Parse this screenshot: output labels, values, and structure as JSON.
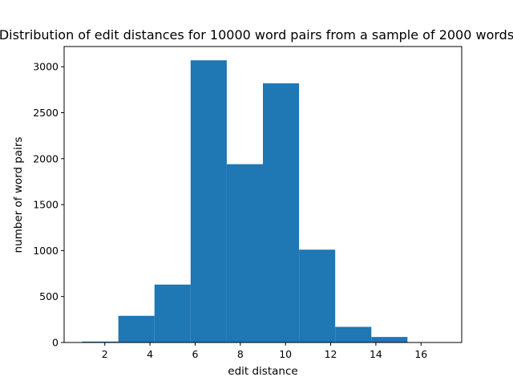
{
  "chart_data": {
    "type": "bar",
    "title": "Distribution of edit distances for 10000 word pairs from a sample of 2000 words",
    "xlabel": "edit distance",
    "ylabel": "number of word pairs",
    "bin_edges": [
      1.0,
      2.6,
      4.2,
      5.8,
      7.4,
      9.0,
      10.6,
      12.2,
      13.8,
      15.4,
      17.0
    ],
    "values": [
      10,
      290,
      630,
      3070,
      1940,
      2820,
      1010,
      170,
      60,
      0
    ],
    "xlim": [
      0.2,
      17.8
    ],
    "ylim": [
      0,
      3220
    ],
    "xticks": [
      2,
      4,
      6,
      8,
      10,
      12,
      14,
      16
    ],
    "yticks": [
      0,
      500,
      1000,
      1500,
      2000,
      2500,
      3000
    ],
    "bar_color": "#1f77b4",
    "grid": false,
    "legend": "none"
  }
}
